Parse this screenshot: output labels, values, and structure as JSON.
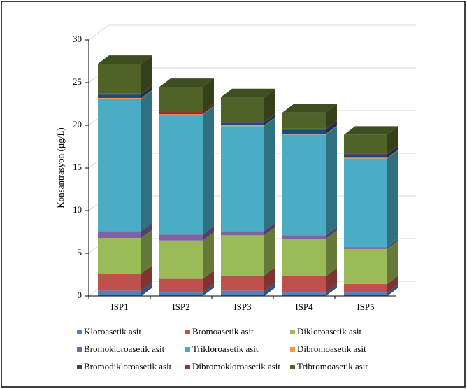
{
  "chart_data": {
    "type": "bar3d-stacked",
    "y_label": "Konsantrasyon (µg/L)",
    "categories": [
      "ISP1",
      "ISP2",
      "ISP3",
      "ISP4",
      "ISP5"
    ],
    "series": [
      {
        "name": "Kloroasetik asit",
        "color": "#4f81bd",
        "values": [
          0.6,
          0.4,
          0.6,
          0.4,
          0.4
        ]
      },
      {
        "name": "Bromoasetik asit",
        "color": "#c0504d",
        "values": [
          2.0,
          1.6,
          1.8,
          1.9,
          1.0
        ]
      },
      {
        "name": "Dikloroasetik asit",
        "color": "#9bbb59",
        "values": [
          4.2,
          4.5,
          4.7,
          4.4,
          4.1
        ]
      },
      {
        "name": "Bromokloroasetik asit",
        "color": "#8064a2",
        "values": [
          0.8,
          0.7,
          0.5,
          0.4,
          0.2
        ]
      },
      {
        "name": "Trikloroasetik asit",
        "color": "#4bacc6",
        "values": [
          15.5,
          14.0,
          12.3,
          11.8,
          10.4
        ]
      },
      {
        "name": "Dibromoasetik asit",
        "color": "#f79646",
        "values": [
          0.1,
          0.1,
          0.1,
          0.1,
          0.1
        ]
      },
      {
        "name": "Bromodikloroasetik asit",
        "color": "#1f497d",
        "values": [
          0.4,
          0.1,
          0.3,
          0.5,
          0.4
        ]
      },
      {
        "name": "Dibromokloroasetik asit",
        "color": "#943634",
        "values": [
          0.1,
          0.2,
          0.1,
          0.1,
          0.1
        ]
      },
      {
        "name": "Tribromoasetik asit",
        "color": "#4f6228",
        "values": [
          3.5,
          2.9,
          2.9,
          1.9,
          2.2
        ]
      }
    ],
    "ylim": [
      0,
      30
    ],
    "yticks": [
      0,
      5,
      10,
      15,
      20,
      25,
      30
    ],
    "grid": true
  }
}
